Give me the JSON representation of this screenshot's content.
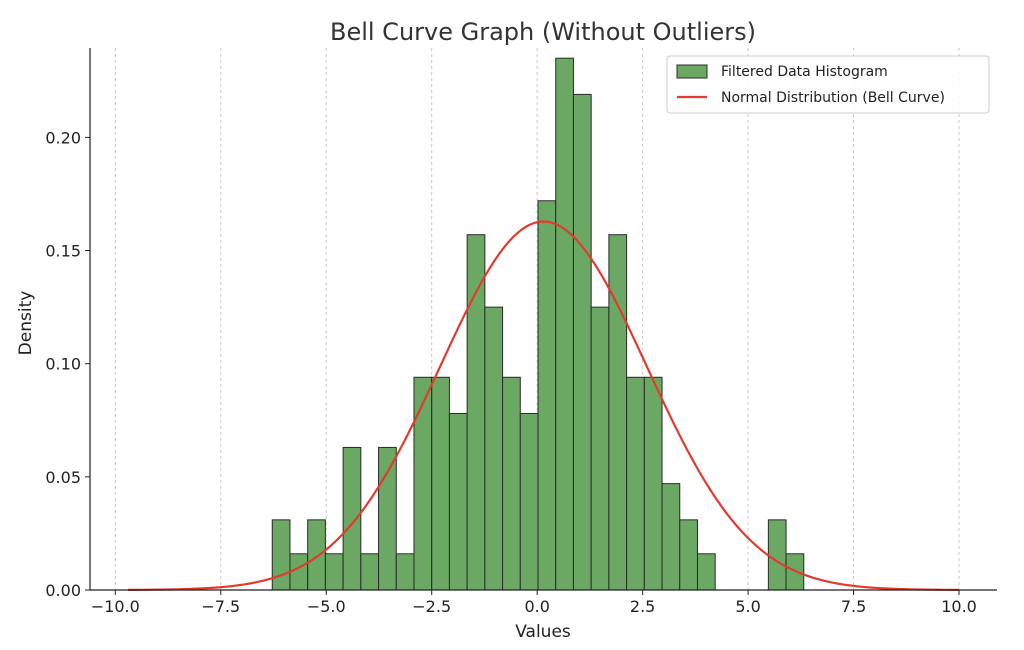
{
  "chart_data": {
    "type": "bar",
    "title": "Bell Curve Graph (Without Outliers)",
    "xlabel": "Values",
    "ylabel": "Density",
    "xlim": [
      -10.6,
      10.9
    ],
    "ylim": [
      0,
      0.2395
    ],
    "xticks": [
      -10.0,
      -7.5,
      -5.0,
      -2.5,
      0.0,
      2.5,
      5.0,
      7.5,
      10.0
    ],
    "xtick_labels": [
      "−10.0",
      "−7.5",
      "−5.0",
      "−2.5",
      "0.0",
      "2.5",
      "5.0",
      "7.5",
      "10.0"
    ],
    "yticks": [
      0.0,
      0.05,
      0.1,
      0.15,
      0.2
    ],
    "ytick_labels": [
      "0.00",
      "0.05",
      "0.10",
      "0.15",
      "0.20"
    ],
    "grid": "x-dashed",
    "legend_position": "top-right",
    "bin_width": 0.42,
    "series": [
      {
        "name": "Filtered Data Histogram",
        "kind": "histogram",
        "color": "#6aa863",
        "edge_color": "#2b2b2b",
        "bin_starts": [
          -6.28,
          -5.86,
          -5.44,
          -5.02,
          -4.6,
          -4.18,
          -3.76,
          -3.34,
          -2.92,
          -2.5,
          -2.08,
          -1.66,
          -1.24,
          -0.82,
          -0.4,
          0.02,
          0.44,
          0.86,
          1.28,
          1.7,
          2.12,
          2.54,
          2.96,
          3.38,
          3.8,
          4.22,
          4.64,
          5.06,
          5.48,
          5.9
        ],
        "values": [
          0.031,
          0.016,
          0.031,
          0.016,
          0.063,
          0.016,
          0.063,
          0.016,
          0.094,
          0.094,
          0.078,
          0.157,
          0.125,
          0.094,
          0.078,
          0.172,
          0.235,
          0.219,
          0.125,
          0.157,
          0.094,
          0.094,
          0.047,
          0.031,
          0.016,
          0.0,
          0.0,
          0.0,
          0.031,
          0.016
        ]
      },
      {
        "name": "Normal Distribution (Bell Curve)",
        "kind": "line",
        "color": "#e23b2e",
        "mean": 0.15,
        "std": 2.45,
        "x_range": [
          -9.7,
          10.0
        ]
      }
    ]
  }
}
